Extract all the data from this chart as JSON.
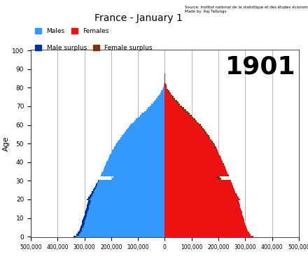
{
  "title": "France - January 1",
  "year": "1901",
  "source_text": "Source: Institut national de la statistique et des études économiques\nMade by: Raj Tallungs",
  "ylabel": "Age",
  "xlim": [
    -500000,
    500000
  ],
  "ylim": [
    -0.5,
    100.5
  ],
  "colors": {
    "males": "#3399FF",
    "females": "#EE1111",
    "male_surplus": "#003399",
    "female_surplus": "#7B3308"
  },
  "ages": [
    0,
    1,
    2,
    3,
    4,
    5,
    6,
    7,
    8,
    9,
    10,
    11,
    12,
    13,
    14,
    15,
    16,
    17,
    18,
    19,
    20,
    21,
    22,
    23,
    24,
    25,
    26,
    27,
    28,
    29,
    30,
    31,
    32,
    33,
    34,
    35,
    36,
    37,
    38,
    39,
    40,
    41,
    42,
    43,
    44,
    45,
    46,
    47,
    48,
    49,
    50,
    51,
    52,
    53,
    54,
    55,
    56,
    57,
    58,
    59,
    60,
    61,
    62,
    63,
    64,
    65,
    66,
    67,
    68,
    69,
    70,
    71,
    72,
    73,
    74,
    75,
    76,
    77,
    78,
    79,
    80,
    81,
    82,
    83,
    84,
    85,
    86,
    87,
    88,
    89,
    90,
    91,
    92,
    93,
    94,
    95,
    96,
    97,
    98,
    99,
    100
  ],
  "males": [
    340000,
    330000,
    325000,
    320000,
    318000,
    315000,
    312000,
    310000,
    308000,
    306000,
    304000,
    302000,
    300000,
    298000,
    296000,
    294000,
    292000,
    290000,
    288000,
    286000,
    290000,
    285000,
    280000,
    276000,
    272000,
    268000,
    264000,
    260000,
    256000,
    252000,
    248000,
    196000,
    192000,
    238000,
    235000,
    232000,
    229000,
    226000,
    223000,
    220000,
    217000,
    213000,
    210000,
    207000,
    204000,
    200000,
    196000,
    192000,
    188000,
    184000,
    180000,
    175000,
    170000,
    165000,
    160000,
    155000,
    150000,
    145000,
    140000,
    135000,
    130000,
    122000,
    114000,
    107000,
    100000,
    93000,
    86000,
    78000,
    70000,
    63000,
    56000,
    50000,
    44000,
    38000,
    33000,
    27000,
    22000,
    17000,
    13000,
    9000,
    6500,
    4500,
    3000,
    2000,
    1300,
    800,
    500,
    300,
    150,
    70,
    30,
    10,
    5,
    2,
    1,
    0,
    0,
    0,
    0,
    0,
    0
  ],
  "females": [
    330000,
    320000,
    315000,
    310000,
    308000,
    305000,
    302000,
    300000,
    298000,
    296000,
    294000,
    292000,
    290000,
    288000,
    286000,
    284000,
    282000,
    280000,
    278000,
    276000,
    280000,
    275000,
    270000,
    267000,
    264000,
    261000,
    258000,
    255000,
    252000,
    249000,
    246000,
    210000,
    205000,
    238000,
    235000,
    232000,
    229000,
    226000,
    223000,
    220000,
    217000,
    213000,
    210000,
    207000,
    204000,
    200000,
    197000,
    194000,
    191000,
    188000,
    185000,
    180000,
    175000,
    170000,
    165000,
    160000,
    155000,
    150000,
    145000,
    140000,
    135000,
    128000,
    120000,
    113000,
    107000,
    101000,
    94000,
    87000,
    79000,
    71000,
    64000,
    57000,
    51000,
    45000,
    39000,
    33000,
    27000,
    22000,
    16000,
    11000,
    7500,
    5500,
    3800,
    2600,
    1700,
    1100,
    700,
    450,
    250,
    120,
    50,
    20,
    8,
    3,
    1,
    0,
    0,
    0,
    0,
    0,
    0
  ],
  "xticks": [
    -500000,
    -400000,
    -300000,
    -200000,
    -100000,
    0,
    100000,
    200000,
    300000,
    400000,
    500000
  ],
  "xtick_labels": [
    "500,000",
    "400,000",
    "300,000",
    "200,000",
    "100,000",
    "0",
    "100,000",
    "200,000",
    "300,000",
    "400,000",
    "500,000"
  ]
}
